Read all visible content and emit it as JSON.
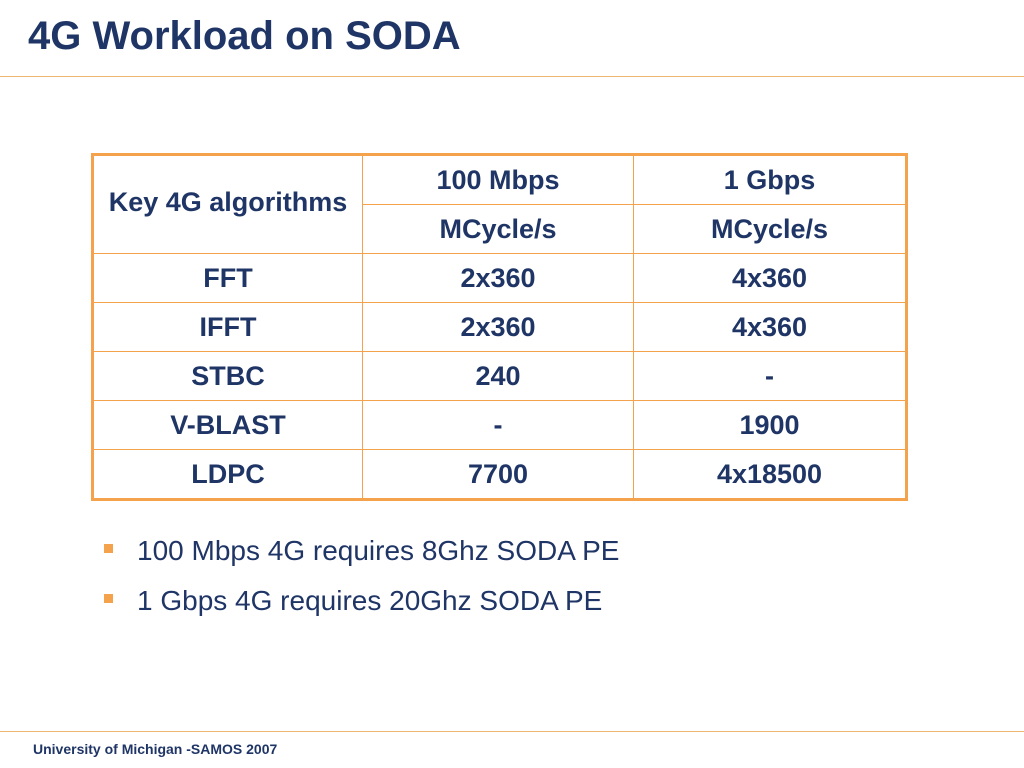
{
  "slide": {
    "title": "4G Workload on SODA"
  },
  "table": {
    "header": {
      "key_label": "Key 4G algorithms",
      "col2_top": "100 Mbps",
      "col2_bottom": "MCycle/s",
      "col3_top": "1 Gbps",
      "col3_bottom": "MCycle/s"
    },
    "rows": [
      {
        "algorithm": "FFT",
        "mbps100": "2x360",
        "gbps1": "4x360"
      },
      {
        "algorithm": "IFFT",
        "mbps100": "2x360",
        "gbps1": "4x360"
      },
      {
        "algorithm": "STBC",
        "mbps100": "240",
        "gbps1": "-"
      },
      {
        "algorithm": "V-BLAST",
        "mbps100": "-",
        "gbps1": "1900"
      },
      {
        "algorithm": "LDPC",
        "mbps100": "7700",
        "gbps1": "4x18500"
      }
    ]
  },
  "bullets": [
    "100 Mbps 4G requires 8Ghz SODA PE",
    "1 Gbps 4G requires 20Ghz SODA PE"
  ],
  "footer": {
    "text": "University of Michigan -SAMOS 2007"
  },
  "colors": {
    "title_text": "#1f3566",
    "accent_orange": "#f4a34c",
    "rule": "#f0b673"
  }
}
